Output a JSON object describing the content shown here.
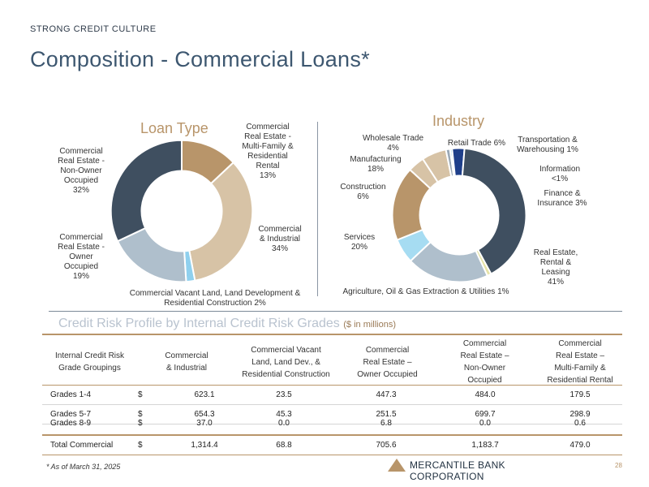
{
  "header": {
    "supertitle": "STRONG CREDIT CULTURE",
    "title": "Composition - Commercial Loans*"
  },
  "chart_data": [
    {
      "type": "pie",
      "title": "Loan Type",
      "categories": [
        "Commercial Real Estate - Multi-Family & Residential Rental",
        "Commercial & Industrial",
        "Commercial Vacant Land, Land Development & Residential Construction",
        "Commercial Real Estate - Owner Occupied",
        "Commercial Real Estate - Non-Owner Occupied"
      ],
      "values": [
        13,
        34,
        2,
        19,
        32
      ],
      "colors": [
        "#b8956a",
        "#d7c3a6",
        "#8fd0ee",
        "#afbfcc",
        "#3f4f60"
      ],
      "labels": [
        "Commercial\nReal Estate -\nMulti-Family &\nResidential\nRental\n13%",
        "Commercial\n& Industrial\n34%",
        "Commercial Vacant Land, Land Development &\nResidential Construction 2%",
        "Commercial\nReal Estate -\nOwner\nOccupied\n19%",
        "Commercial\nReal Estate -\nNon-Owner\nOccupied\n32%"
      ]
    },
    {
      "type": "pie",
      "title": "Industry",
      "categories": [
        "Retail Trade",
        "Transportation & Warehousing",
        "Information",
        "Finance & Insurance",
        "Real Estate, Rental & Leasing",
        "Agriculture, Oil & Gas Extraction & Utilities",
        "Services",
        "Construction",
        "Manufacturing",
        "Wholesale Trade"
      ],
      "values": [
        6,
        1,
        0.5,
        3,
        41,
        1,
        20,
        6,
        18,
        4
      ],
      "colors": [
        "#d7c3a6",
        "#9aa8b5",
        "#8fd0ee",
        "#1f3f8a",
        "#3f4f60",
        "#e6e3a8",
        "#afbfcc",
        "#a6dcf2",
        "#b8956a",
        "#d7c3a6"
      ],
      "labels": [
        "Retail Trade 6%",
        "Transportation &\nWarehousing 1%",
        "Information\n<1%",
        "Finance &\nInsurance 3%",
        "Real Estate,\nRental &\nLeasing\n41%",
        "Agriculture, Oil & Gas Extraction & Utilities 1%",
        "Services\n20%",
        "Construction\n6%",
        "Manufacturing\n18%",
        "Wholesale Trade\n4%"
      ]
    }
  ],
  "risk_profile": {
    "title": "Credit Risk Profile by Internal Credit Risk Grades",
    "units": "($ in millions)",
    "headers": [
      "Internal Credit Risk\nGrade Groupings",
      "Commercial\n& Industrial",
      "Commercial Vacant\nLand, Land Dev., &\nResidential Construction",
      "Commercial\nReal Estate –\nOwner Occupied",
      "Commercial\nReal Estate –\nNon-Owner\nOccupied",
      "Commercial\nReal Estate –\nMulti-Family &\nResidential Rental"
    ],
    "rows": [
      {
        "label": "Grades 1-4",
        "dollar": "$",
        "values": [
          "623.1",
          "23.5",
          "447.3",
          "484.0",
          "179.5"
        ]
      },
      {
        "label": "Grades 5-7",
        "dollar": "$",
        "values": [
          "654.3",
          "45.3",
          "251.5",
          "699.7",
          "298.9"
        ]
      },
      {
        "label": "Grades 8-9",
        "dollar": "$",
        "values": [
          "37.0",
          "0.0",
          "6.8",
          "0.0",
          "0.6"
        ]
      },
      {
        "label": "Total Commercial",
        "dollar": "$",
        "values": [
          "1,314.4",
          "68.8",
          "705.6",
          "1,183.7",
          "479.0"
        ]
      }
    ]
  },
  "footer": {
    "footnote": "* As of March 31, 2025",
    "logo_text": "MERCANTILE BANK CORPORATION",
    "page_number": "28",
    "brand_color": "#b8956a"
  }
}
